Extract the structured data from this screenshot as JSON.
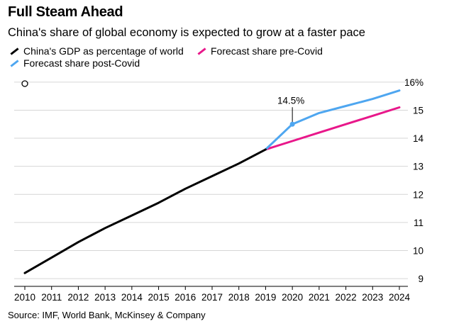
{
  "title": "Full Steam Ahead",
  "subtitle": "China's share of global economy is expected to grow at a faster pace",
  "source": "Source: IMF, World Bank, McKinsey & Company",
  "chart_data": {
    "type": "line",
    "title": "Full Steam Ahead",
    "subtitle": "China's share of global economy is expected to grow at a faster pace",
    "x": [
      2010,
      2011,
      2012,
      2013,
      2014,
      2015,
      2016,
      2017,
      2018,
      2019,
      2020,
      2021,
      2022,
      2023,
      2024
    ],
    "x_tick_labels": [
      "2010",
      "2011",
      "2012",
      "2013",
      "2014",
      "2015",
      "2016",
      "2017",
      "2018",
      "2019",
      "2020",
      "2021",
      "2022",
      "2023",
      "2024"
    ],
    "y_tick_labels": [
      "9",
      "10",
      "11",
      "12",
      "13",
      "14",
      "15",
      "16%"
    ],
    "y_ticks": [
      9,
      10,
      11,
      12,
      13,
      14,
      15,
      16
    ],
    "ylim": [
      8.8,
      16.4
    ],
    "xlim": [
      2010,
      2024
    ],
    "y_axis_position": "right",
    "grid": "horizontal",
    "legend_position": "top-left",
    "series": [
      {
        "name": "China's GDP as percentage of world",
        "color": "#000000",
        "x": [
          2010,
          2011,
          2012,
          2013,
          2014,
          2015,
          2016,
          2017,
          2018,
          2019
        ],
        "values": [
          9.2,
          9.75,
          10.3,
          10.8,
          11.25,
          11.7,
          12.2,
          12.65,
          13.1,
          13.6
        ]
      },
      {
        "name": "Forecast share pre-Covid",
        "color": "#e8178a",
        "x": [
          2019,
          2020,
          2021,
          2022,
          2023,
          2024
        ],
        "values": [
          13.6,
          13.9,
          14.2,
          14.5,
          14.8,
          15.1
        ]
      },
      {
        "name": "Forecast share post-Covid",
        "color": "#4ea6f0",
        "x": [
          2019,
          2020,
          2021,
          2022,
          2023,
          2024
        ],
        "values": [
          13.6,
          14.5,
          14.9,
          15.15,
          15.4,
          15.7
        ]
      }
    ],
    "annotations": [
      {
        "text": "14.5%",
        "x": 2020,
        "y": 14.5
      }
    ]
  }
}
